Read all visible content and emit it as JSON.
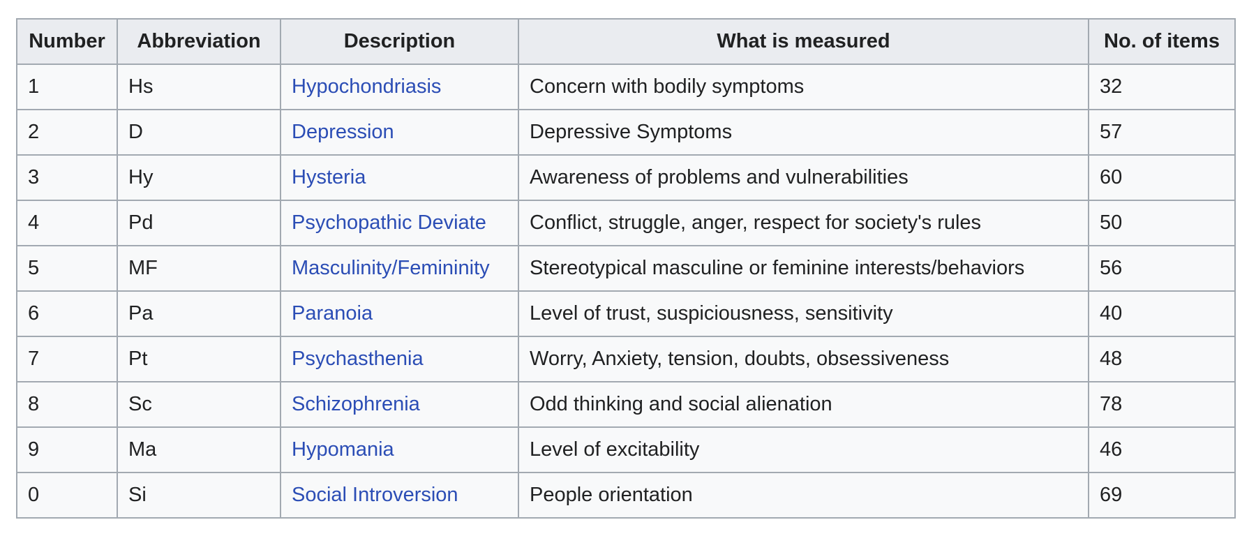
{
  "table": {
    "columns": [
      {
        "key": "number",
        "label": "Number"
      },
      {
        "key": "abbreviation",
        "label": "Abbreviation"
      },
      {
        "key": "description",
        "label": "Description"
      },
      {
        "key": "measured",
        "label": "What is measured"
      },
      {
        "key": "items",
        "label": "No. of items"
      }
    ],
    "rows": [
      {
        "number": "1",
        "abbreviation": "Hs",
        "description": "Hypochondriasis",
        "measured": "Concern with bodily symptoms",
        "items": "32"
      },
      {
        "number": "2",
        "abbreviation": "D",
        "description": "Depression",
        "measured": "Depressive Symptoms",
        "items": "57"
      },
      {
        "number": "3",
        "abbreviation": "Hy",
        "description": "Hysteria",
        "measured": "Awareness of problems and vulnerabilities",
        "items": "60"
      },
      {
        "number": "4",
        "abbreviation": "Pd",
        "description": "Psychopathic Deviate",
        "measured": "Conflict, struggle, anger, respect for society's rules",
        "items": "50"
      },
      {
        "number": "5",
        "abbreviation": "MF",
        "description": "Masculinity/Femininity",
        "measured": "Stereotypical masculine or feminine interests/behaviors",
        "items": "56"
      },
      {
        "number": "6",
        "abbreviation": "Pa",
        "description": "Paranoia",
        "measured": "Level of trust, suspiciousness, sensitivity",
        "items": "40"
      },
      {
        "number": "7",
        "abbreviation": "Pt",
        "description": "Psychasthenia",
        "measured": "Worry, Anxiety, tension, doubts, obsessiveness",
        "items": "48"
      },
      {
        "number": "8",
        "abbreviation": "Sc",
        "description": "Schizophrenia",
        "measured": "Odd thinking and social alienation",
        "items": "78"
      },
      {
        "number": "9",
        "abbreviation": "Ma",
        "description": "Hypomania",
        "measured": "Level of excitability",
        "items": "46"
      },
      {
        "number": "0",
        "abbreviation": "Si",
        "description": "Social Introversion",
        "measured": "People orientation",
        "items": "69"
      }
    ]
  },
  "colors": {
    "header_bg": "#eaecf0",
    "body_bg": "#f8f9fa",
    "border": "#a2a9b1",
    "text": "#202122",
    "link": "#2b4db5"
  }
}
